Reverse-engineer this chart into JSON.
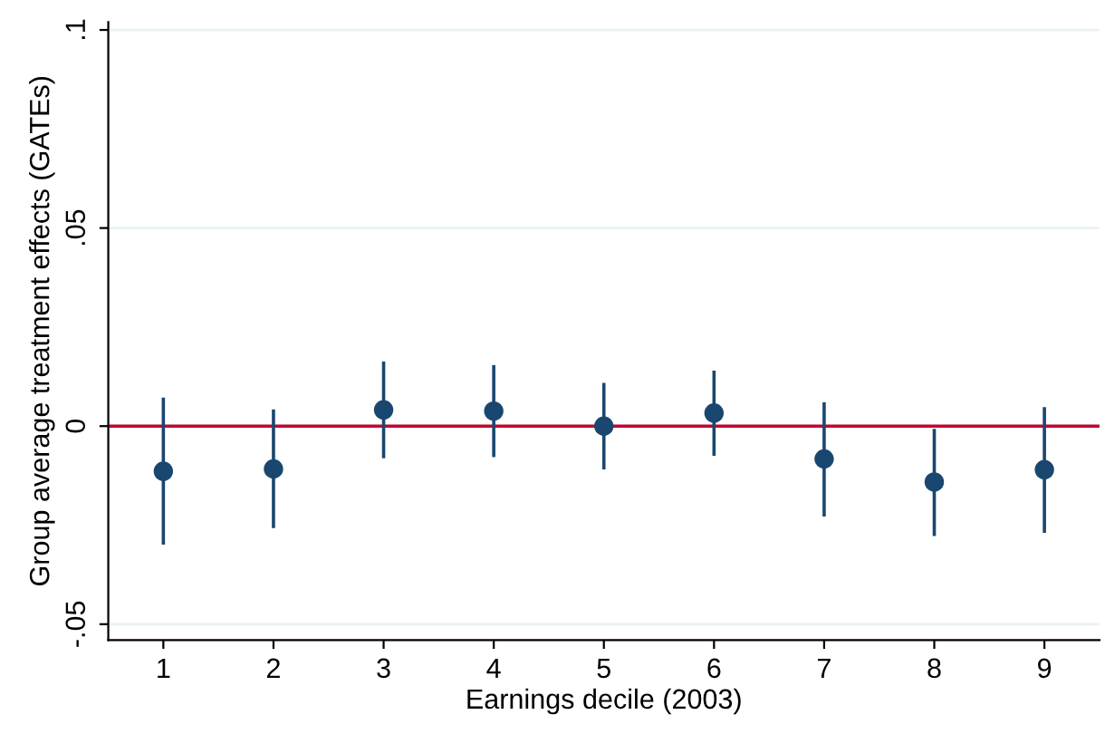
{
  "chart_data": {
    "type": "scatter",
    "xlabel": "Earnings decile (2003)",
    "ylabel": "Group average treatment effects (GATEs)",
    "x": [
      1,
      2,
      3,
      4,
      5,
      6,
      7,
      8,
      9
    ],
    "values": [
      -0.0114,
      -0.0108,
      0.0041,
      0.0038,
      0.0,
      0.0033,
      -0.0083,
      -0.0141,
      -0.011
    ],
    "errors": [
      [
        -0.0295,
        0.0068
      ],
      [
        -0.0253,
        0.0038
      ],
      [
        -0.0077,
        0.0159
      ],
      [
        -0.0074,
        0.015
      ],
      [
        -0.0105,
        0.0105
      ],
      [
        -0.0071,
        0.0136
      ],
      [
        -0.0224,
        0.0056
      ],
      [
        -0.0273,
        -0.0011
      ],
      [
        -0.0265,
        0.0044
      ]
    ],
    "color": "#1a476f",
    "marker": "circle",
    "xlim": [
      0.5,
      9.5
    ],
    "xticks": [
      1,
      2,
      3,
      4,
      5,
      6,
      7,
      8,
      9
    ],
    "ylim": [
      -0.054,
      0.102
    ],
    "yticks": [
      {
        "value": -0.05,
        "label": "-.05"
      },
      {
        "value": 0,
        "label": "0"
      },
      {
        "value": 0.05,
        "label": ".05"
      },
      {
        "value": 0.1,
        "label": ".1"
      }
    ],
    "grid": "y",
    "ref_lines": [
      {
        "axis": "y",
        "value": 0,
        "color": "#c10534",
        "line_style": "solid"
      }
    ]
  }
}
